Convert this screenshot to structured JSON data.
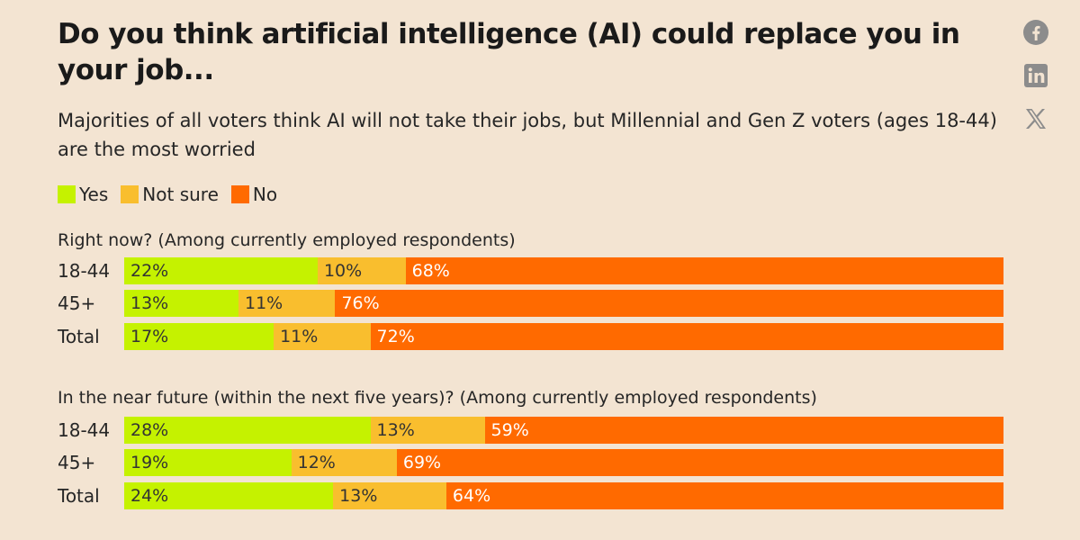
{
  "chart_data": {
    "type": "bar",
    "orientation": "horizontal",
    "stacked": true,
    "title": "Do you think artificial intelligence (AI) could replace you in your job...",
    "subtitle": "Majorities of all voters think AI will not take their jobs, but Millennial and Gen Z voters (ages 18-44) are the most worried",
    "legend_position": "top-left",
    "legend": [
      {
        "name": "Yes",
        "color": "#c5f200"
      },
      {
        "name": "Not sure",
        "color": "#f9be2e"
      },
      {
        "name": "No",
        "color": "#ff6a00"
      }
    ],
    "value_suffix": "%",
    "panels": [
      {
        "title": "Right now? (Among currently employed respondents)",
        "categories": [
          "18-44",
          "45+",
          "Total"
        ],
        "series": [
          {
            "name": "Yes",
            "values": [
              22,
              13,
              17
            ]
          },
          {
            "name": "Not sure",
            "values": [
              10,
              11,
              11
            ]
          },
          {
            "name": "No",
            "values": [
              68,
              76,
              72
            ]
          }
        ]
      },
      {
        "title": "In the near future (within the next five years)? (Among currently employed respondents)",
        "categories": [
          "18-44",
          "45+",
          "Total"
        ],
        "series": [
          {
            "name": "Yes",
            "values": [
              28,
              19,
              24
            ]
          },
          {
            "name": "Not sure",
            "values": [
              13,
              12,
              13
            ]
          },
          {
            "name": "No",
            "values": [
              59,
              69,
              64
            ]
          }
        ]
      }
    ]
  },
  "share": {
    "icons": [
      {
        "name": "facebook-icon"
      },
      {
        "name": "linkedin-icon"
      },
      {
        "name": "x-icon"
      }
    ],
    "icon_color": "#8c8c8c"
  },
  "colors": {
    "background": "#f3e4d2",
    "label_dark": "#333333",
    "label_light": "#ffffff"
  }
}
